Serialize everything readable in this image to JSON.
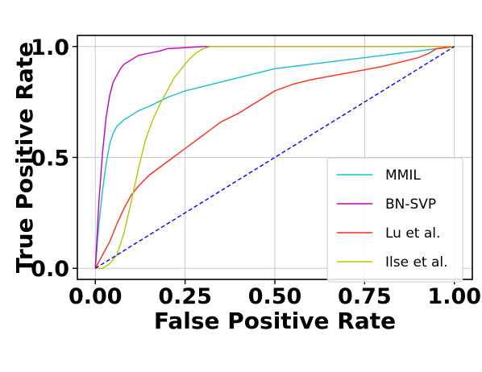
{
  "chart_data": {
    "type": "line",
    "title": "",
    "xlabel": "False Positive Rate",
    "ylabel": "True Positive Rate",
    "xlim": [
      -0.05,
      1.05
    ],
    "ylim": [
      -0.05,
      1.05
    ],
    "xticks": [
      0.0,
      0.25,
      0.5,
      0.75,
      1.0
    ],
    "xtick_labels": [
      "0.00",
      "0.25",
      "0.50",
      "0.75",
      "1.00"
    ],
    "yticks": [
      0.0,
      0.5,
      1.0
    ],
    "ytick_labels": [
      "0.0",
      "0.5",
      "1.0"
    ],
    "grid": true,
    "legend_position": "lower-right",
    "series": [
      {
        "name": "MMIL",
        "color": "#17becf",
        "x": [
          0,
          0.01,
          0.02,
          0.03,
          0.04,
          0.05,
          0.06,
          0.08,
          0.1,
          0.12,
          0.15,
          0.2,
          0.25,
          0.3,
          0.35,
          0.4,
          0.45,
          0.5,
          0.6,
          0.7,
          0.8,
          0.85,
          0.9,
          0.95,
          1.0
        ],
        "y": [
          0,
          0.2,
          0.35,
          0.47,
          0.56,
          0.61,
          0.64,
          0.67,
          0.69,
          0.71,
          0.73,
          0.77,
          0.8,
          0.82,
          0.84,
          0.86,
          0.88,
          0.9,
          0.92,
          0.94,
          0.96,
          0.97,
          0.98,
          0.99,
          1.0
        ]
      },
      {
        "name": "BN-SVP",
        "color": "#bf00bf",
        "x": [
          0,
          0.01,
          0.02,
          0.03,
          0.04,
          0.05,
          0.06,
          0.07,
          0.08,
          0.1,
          0.12,
          0.15,
          0.18,
          0.2,
          0.25,
          0.3,
          0.35,
          0.4,
          0.6,
          0.8,
          1.0
        ],
        "y": [
          0,
          0.3,
          0.52,
          0.68,
          0.78,
          0.84,
          0.87,
          0.9,
          0.92,
          0.94,
          0.96,
          0.97,
          0.98,
          0.99,
          0.995,
          1.0,
          1.0,
          1.0,
          1.0,
          1.0,
          1.0
        ]
      },
      {
        "name": "Lu et al.",
        "color": "#ff2a1a",
        "x": [
          0,
          0.02,
          0.04,
          0.06,
          0.08,
          0.1,
          0.12,
          0.15,
          0.2,
          0.25,
          0.3,
          0.35,
          0.4,
          0.45,
          0.5,
          0.55,
          0.6,
          0.7,
          0.8,
          0.85,
          0.9,
          0.93,
          0.95,
          1.0
        ],
        "y": [
          0,
          0.06,
          0.12,
          0.2,
          0.27,
          0.33,
          0.37,
          0.42,
          0.48,
          0.54,
          0.6,
          0.66,
          0.7,
          0.75,
          0.8,
          0.83,
          0.85,
          0.88,
          0.91,
          0.93,
          0.95,
          0.97,
          0.99,
          1.0
        ]
      },
      {
        "name": "Ilse et al.",
        "color": "#bfbf00",
        "x": [
          0,
          0.02,
          0.04,
          0.06,
          0.08,
          0.1,
          0.12,
          0.14,
          0.16,
          0.18,
          0.2,
          0.22,
          0.24,
          0.26,
          0.28,
          0.3,
          0.32,
          0.34,
          0.4,
          0.6,
          0.8,
          1.0
        ],
        "y": [
          0,
          0.0,
          0.02,
          0.06,
          0.16,
          0.3,
          0.45,
          0.58,
          0.67,
          0.74,
          0.8,
          0.86,
          0.9,
          0.94,
          0.97,
          0.99,
          1.0,
          1.0,
          1.0,
          1.0,
          1.0,
          1.0
        ]
      },
      {
        "name": "",
        "color": "#0000ff",
        "dashed": true,
        "x": [
          0,
          1
        ],
        "y": [
          0,
          1
        ]
      }
    ]
  }
}
